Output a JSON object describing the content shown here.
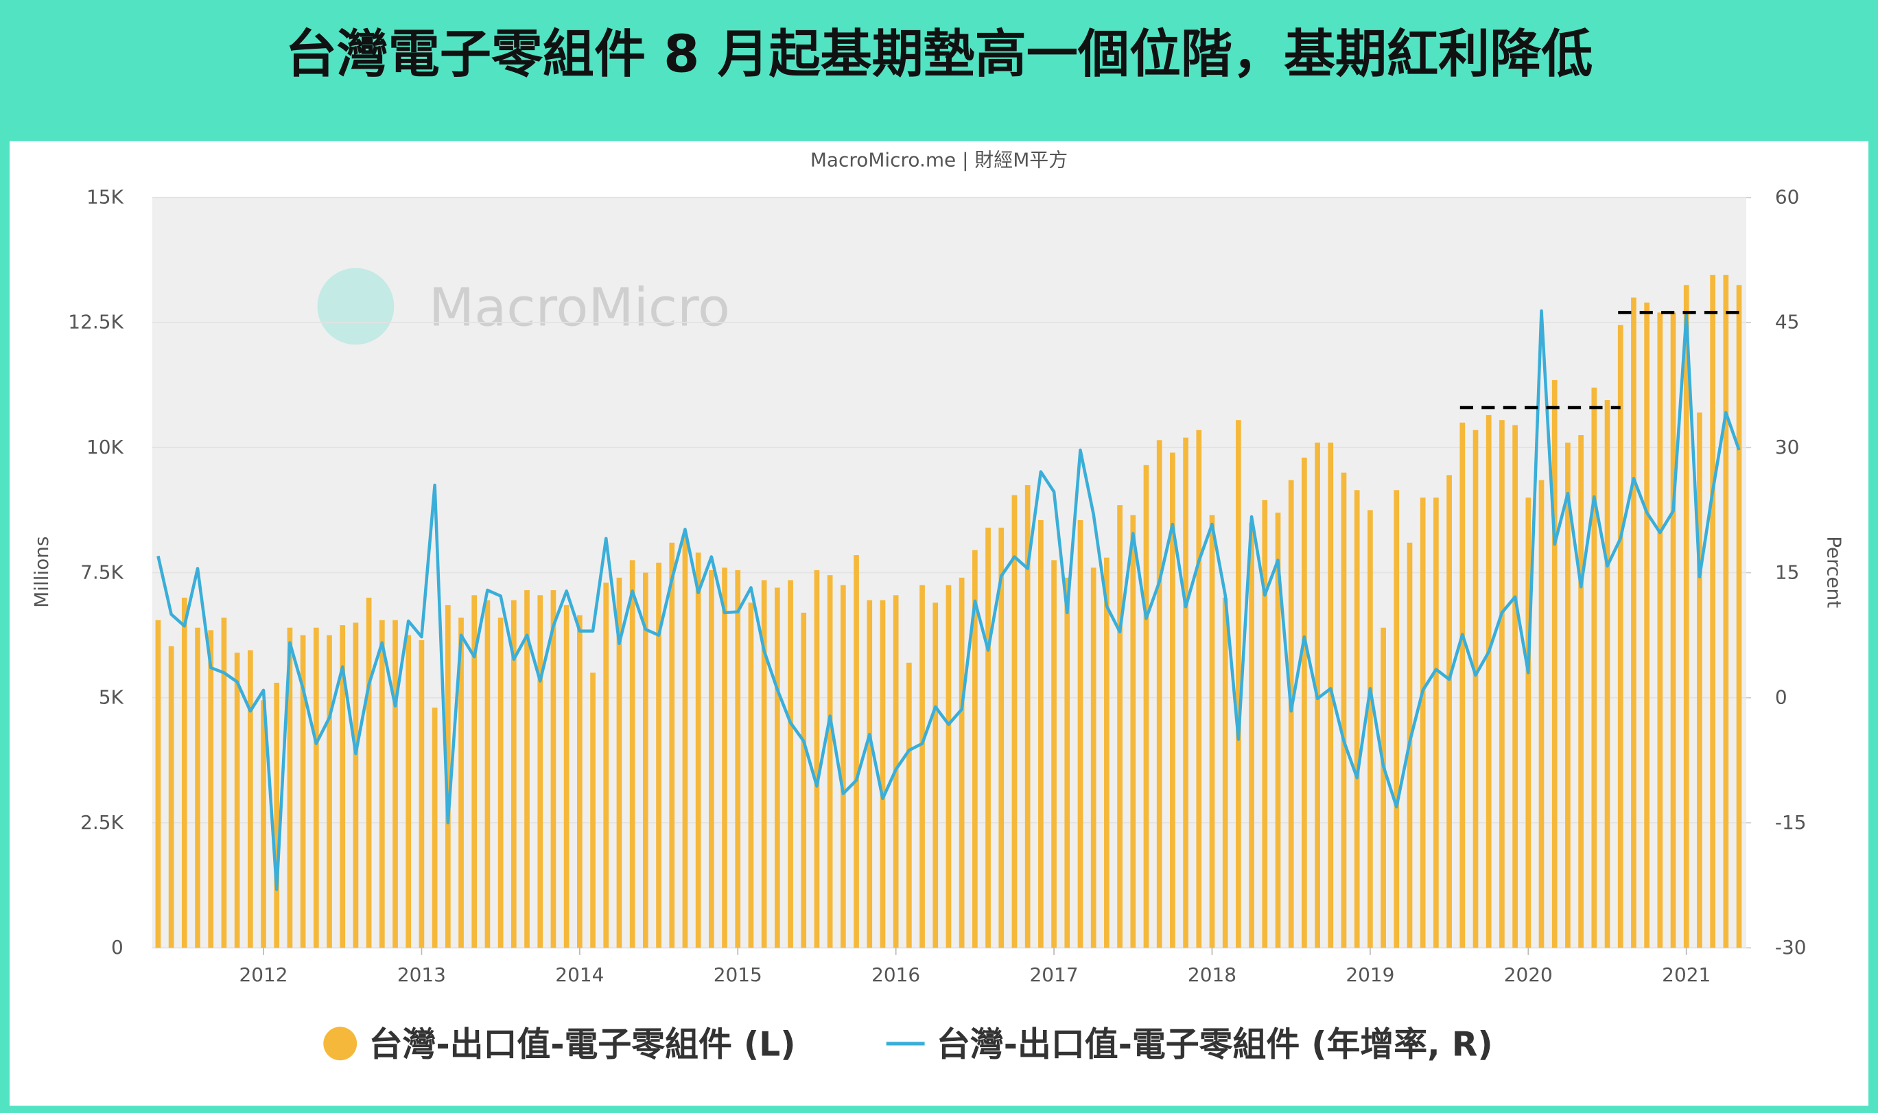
{
  "chart_data": {
    "type": "combo",
    "title": "台灣電子零組件 8 月起基期墊高一個位階，基期紅利降低",
    "source": "MacroMicro.me | 財經M平方",
    "watermark": "MacroMicro",
    "y_label": "Millions",
    "y2_label": "Percent",
    "categories": [
      null,
      null,
      null,
      null,
      null,
      null,
      null,
      null,
      "2012",
      null,
      null,
      null,
      null,
      null,
      null,
      null,
      null,
      null,
      null,
      null,
      "2013",
      null,
      null,
      null,
      null,
      null,
      null,
      null,
      null,
      null,
      null,
      null,
      "2014",
      null,
      null,
      null,
      null,
      null,
      null,
      null,
      null,
      null,
      null,
      null,
      "2015",
      null,
      null,
      null,
      null,
      null,
      null,
      null,
      null,
      null,
      null,
      null,
      "2016",
      null,
      null,
      null,
      null,
      null,
      null,
      null,
      null,
      null,
      null,
      null,
      "2017",
      null,
      null,
      null,
      null,
      null,
      null,
      null,
      null,
      null,
      null,
      null,
      "2018",
      null,
      null,
      null,
      null,
      null,
      null,
      null,
      null,
      null,
      null,
      null,
      "2019",
      null,
      null,
      null,
      null,
      null,
      null,
      null,
      null,
      null,
      null,
      null,
      "2020",
      null,
      null,
      null,
      null,
      null,
      null,
      null,
      null,
      null,
      null,
      null,
      "2021",
      null,
      null,
      null,
      null
    ],
    "series": [
      {
        "name": "台灣-出口值-電子零組件 (L)",
        "type": "bar",
        "axis": "y",
        "color": "#f5b83a",
        "values": [
          6550,
          6030,
          7000,
          6400,
          6350,
          6600,
          5900,
          5950,
          4950,
          5300,
          6400,
          6250,
          6400,
          6250,
          6450,
          6500,
          7000,
          6550,
          6550,
          6250,
          6150,
          4800,
          6850,
          6600,
          7050,
          6950,
          6600,
          6950,
          7150,
          7050,
          7150,
          6850,
          6650,
          5500,
          7300,
          7400,
          7750,
          7500,
          7700,
          8100,
          8250,
          7900,
          7550,
          7600,
          7550,
          6900,
          7350,
          7200,
          7350,
          6700,
          7550,
          7450,
          7250,
          7850,
          6950,
          6950,
          7050,
          5700,
          7250,
          6900,
          7250,
          7400,
          7950,
          8400,
          8400,
          9050,
          9250,
          8550,
          7750,
          7400,
          8550,
          7600,
          7800,
          8850,
          8650,
          9650,
          10150,
          9900,
          10200,
          10350,
          8650,
          7000,
          10550,
          8500,
          8950,
          8700,
          9350,
          9800,
          10100,
          10100,
          9500,
          9150,
          8750,
          6400,
          9150,
          8100,
          9000,
          9000,
          9450,
          10500,
          10350,
          10650,
          10550,
          10450,
          9000,
          9350,
          11350,
          10100,
          10250,
          11200,
          10950,
          12450,
          13000,
          12900,
          12700,
          12700,
          13250,
          10700,
          13450,
          13450,
          13250
        ]
      },
      {
        "name": "台灣-出口值-電子零組件 (年增率, R)",
        "type": "line",
        "axis": "y2",
        "color": "#3aaed8",
        "values": [
          17,
          10,
          8.6,
          15.5,
          3.6,
          3,
          1.9,
          -1.6,
          0.9,
          -23,
          6.6,
          1.1,
          -5.5,
          -2.4,
          3.7,
          -6.7,
          1.6,
          6.6,
          -1,
          9.2,
          7.3,
          25.5,
          -15,
          7.5,
          4.9,
          12.9,
          12.2,
          4.6,
          7.5,
          2,
          8.6,
          12.8,
          8,
          8,
          19.1,
          6.5,
          12.8,
          8.2,
          7.5,
          14.2,
          20.2,
          12.6,
          16.9,
          10.2,
          10.3,
          13.2,
          5.6,
          1,
          -3,
          -5.2,
          -10.6,
          -2.2,
          -11.5,
          -9.9,
          -4.4,
          -12.1,
          -8.6,
          -6.3,
          -5.5,
          -1.1,
          -3.2,
          -1.4,
          11.6,
          5.7,
          14.6,
          16.9,
          15.5,
          27.1,
          24.7,
          10.2,
          29.7,
          22,
          11,
          7.9,
          19.7,
          9.5,
          13.9,
          20.8,
          10.9,
          16.4,
          20.8,
          12.3,
          -5,
          21.7,
          12.3,
          16.5,
          -1.6,
          7.3,
          -0.1,
          1.1,
          -5.2,
          -9.6,
          1.1,
          -8.2,
          -13.1,
          -5.3,
          0.9,
          3.4,
          2.2,
          7.6,
          2.7,
          5.5,
          10.2,
          12.1,
          3,
          46.4,
          18.4,
          24.5,
          13.3,
          24.1,
          15.8,
          19.1,
          26.3,
          22.2,
          19.8,
          22.4,
          45.9,
          14.5,
          24.8,
          34.2,
          29.7
        ]
      }
    ],
    "ylim": [
      0,
      15000
    ],
    "yticks": [
      0,
      {
        "value": 2500,
        "label": "2.5K"
      },
      {
        "value": 5000,
        "label": "5K"
      },
      {
        "value": 7500,
        "label": "7.5K"
      },
      {
        "value": 10000,
        "label": "10K"
      },
      {
        "value": 12500,
        "label": "12.5K"
      },
      {
        "value": 15000,
        "label": "15K"
      }
    ],
    "y2lim": [
      -30,
      60
    ],
    "y2ticks": [
      -30,
      -15,
      0,
      15,
      30,
      45,
      60
    ],
    "reference_lines": [
      {
        "value": 10800,
        "color": "#000000"
      },
      {
        "value": 12700,
        "color": "#000000"
      }
    ],
    "grid": true
  }
}
